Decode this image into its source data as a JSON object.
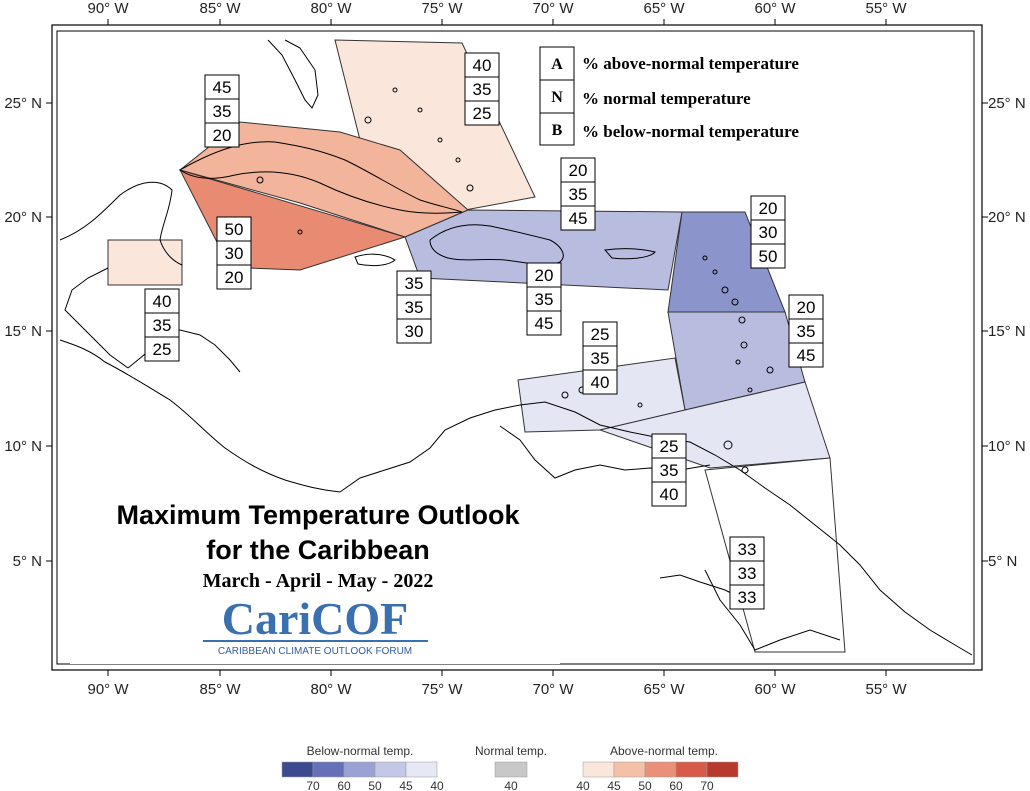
{
  "map": {
    "lon_labels": [
      "90° W",
      "85° W",
      "80° W",
      "75° W",
      "70° W",
      "65° W",
      "60° W",
      "55° W"
    ],
    "lat_labels": [
      "25° N",
      "20° N",
      "15° N",
      "10° N",
      "5° N"
    ],
    "legend_box": [
      {
        "key": "A",
        "text": "% above-normal temperature"
      },
      {
        "key": "N",
        "text": "% normal temperature"
      },
      {
        "key": "B",
        "text": "% below-normal temperature"
      }
    ],
    "title": "Maximum Temperature Outlook",
    "title_line2": "for the Caribbean",
    "subtitle": "March - April - May - 2022",
    "logo_text": "CariCOF",
    "logo_subtext": "CARIBBEAN CLIMATE OUTLOOK FORUM",
    "regions": [
      {
        "name": "bahamas",
        "above": "40",
        "normal": "35",
        "below": "25",
        "fill": "#fbe6dc"
      },
      {
        "name": "cuba",
        "above": "45",
        "normal": "35",
        "below": "20",
        "fill": "#f2b49a"
      },
      {
        "name": "western-caribbean",
        "above": "50",
        "normal": "30",
        "below": "20",
        "fill": "#e88b72"
      },
      {
        "name": "belize",
        "above": "40",
        "normal": "35",
        "below": "25",
        "fill": "#fbe6dc"
      },
      {
        "name": "jamaica",
        "above": "35",
        "normal": "35",
        "below": "30",
        "fill": "#ffffff"
      },
      {
        "name": "hispaniola-north",
        "above": "20",
        "normal": "35",
        "below": "45",
        "fill": "#b8bde0"
      },
      {
        "name": "hispaniola-south",
        "above": "20",
        "normal": "35",
        "below": "45",
        "fill": "#b8bde0"
      },
      {
        "name": "northern-lesser-antilles",
        "above": "20",
        "normal": "30",
        "below": "50",
        "fill": "#8c94cc"
      },
      {
        "name": "windward-islands",
        "above": "20",
        "normal": "35",
        "below": "45",
        "fill": "#b8bde0"
      },
      {
        "name": "abc-islands",
        "above": "25",
        "normal": "35",
        "below": "40",
        "fill": "#e4e6f4"
      },
      {
        "name": "trinidad",
        "above": "25",
        "normal": "35",
        "below": "40",
        "fill": "#e4e6f4"
      },
      {
        "name": "guianas",
        "above": "33",
        "normal": "33",
        "below": "33",
        "fill": "#ffffff"
      }
    ]
  },
  "colorbar": {
    "below_label": "Below-normal temp.",
    "normal_label": "Normal temp.",
    "above_label": "Above-normal temp.",
    "below_ticks": [
      "70",
      "60",
      "50",
      "45",
      "40"
    ],
    "normal_ticks": [
      "40"
    ],
    "above_ticks": [
      "40",
      "45",
      "50",
      "60",
      "70"
    ],
    "below_colors": [
      "#3c4a8f",
      "#6570b8",
      "#9aa2d4",
      "#c3c8e6",
      "#e6e8f6"
    ],
    "normal_color": "#c8c8c8",
    "above_colors": [
      "#fbe6dc",
      "#f5c0a8",
      "#eb9078",
      "#d85a48",
      "#b83a2c"
    ]
  }
}
